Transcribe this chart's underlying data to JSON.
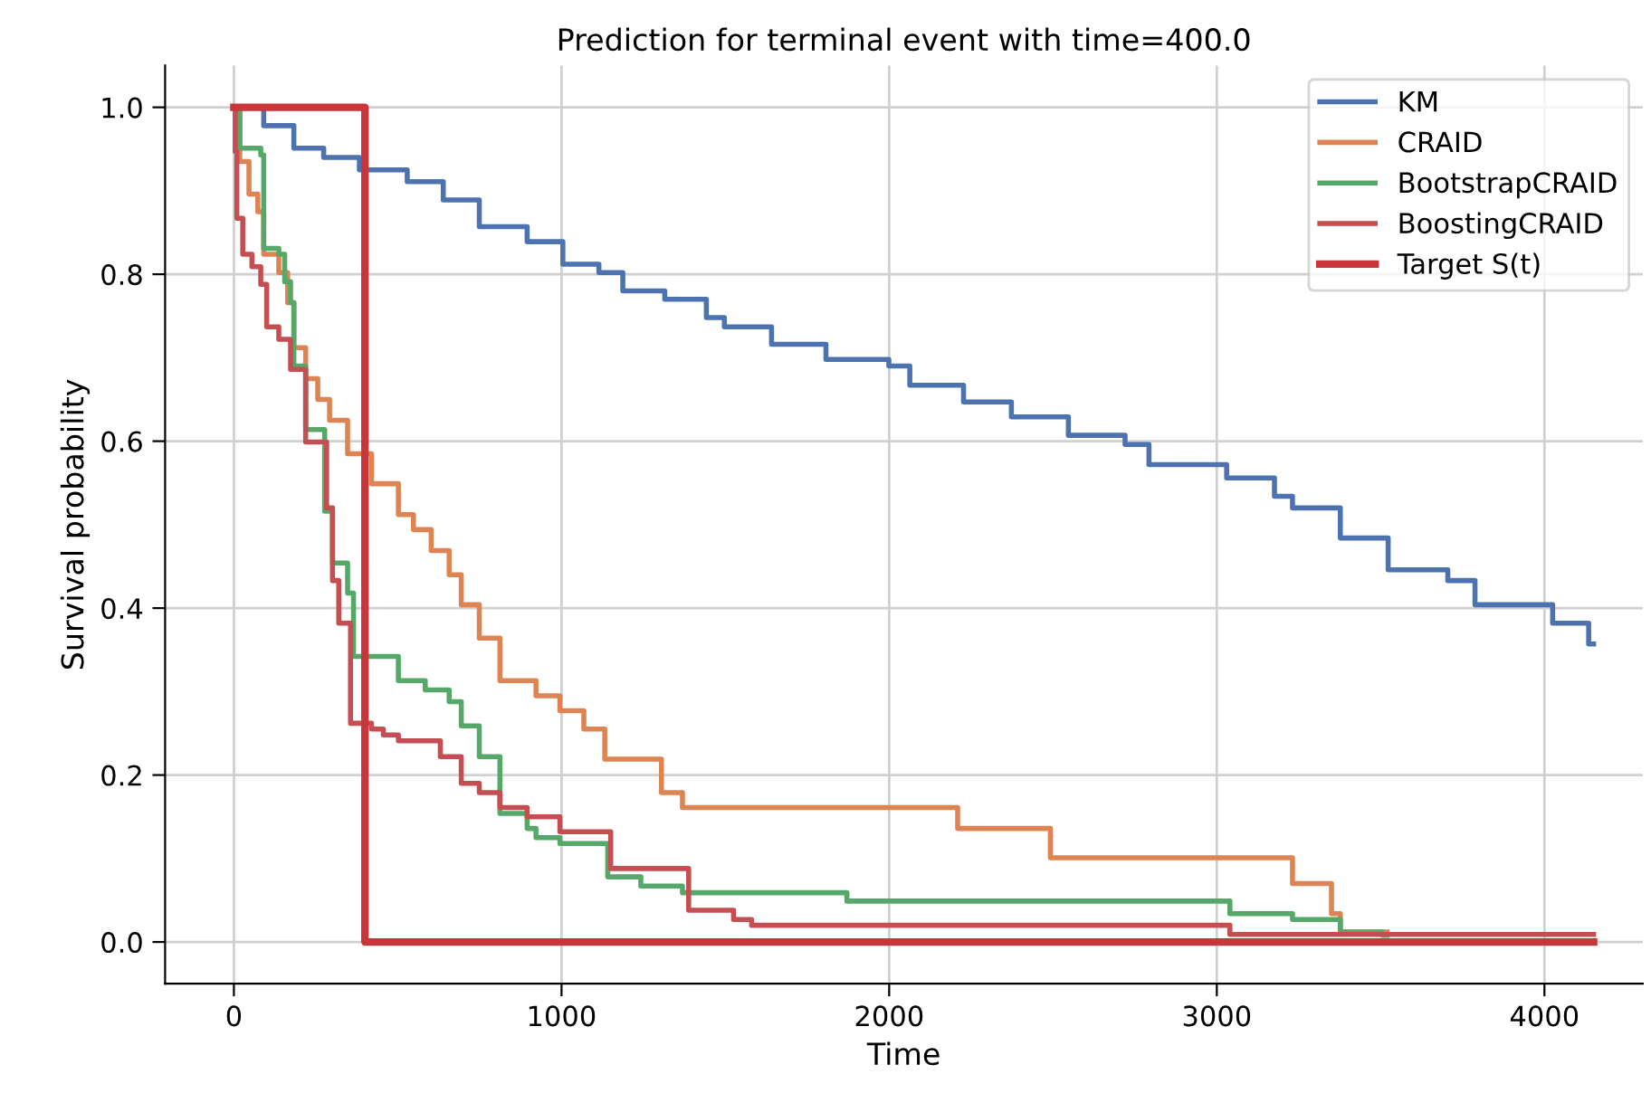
{
  "chart_data": {
    "type": "step",
    "title": "Prediction for terminal event with time=400.0",
    "xlabel": "Time",
    "ylabel": "Survival probability",
    "xlim": [
      -210,
      4300
    ],
    "ylim": [
      -0.05,
      1.05
    ],
    "xticks": [
      0,
      1000,
      2000,
      3000,
      4000
    ],
    "yticks": [
      {
        "value": 0,
        "label": "0.0"
      },
      {
        "value": 0.2,
        "label": "0.2"
      },
      {
        "value": 0.4,
        "label": "0.4"
      },
      {
        "value": 0.6,
        "label": "0.6"
      },
      {
        "value": 0.8,
        "label": "0.8"
      },
      {
        "value": 1,
        "label": "1.0"
      }
    ],
    "grid": true,
    "legend": "top right",
    "line_style": "solid",
    "marker": "none",
    "series": [
      {
        "name": "KM",
        "color": "#4c72b0",
        "x": [
          0,
          91,
          183,
          274,
          383,
          529,
          639,
          749,
          895,
          1004,
          1114,
          1187,
          1315,
          1442,
          1497,
          1641,
          1807,
          1999,
          2063,
          2227,
          2373,
          2547,
          2720,
          2793,
          3030,
          3176,
          3231,
          3377,
          3523,
          3705,
          3788,
          4025,
          4135,
          4150
        ],
        "values": [
          1.0,
          0.978,
          0.951,
          0.94,
          0.925,
          0.911,
          0.889,
          0.857,
          0.839,
          0.812,
          0.802,
          0.78,
          0.77,
          0.748,
          0.737,
          0.716,
          0.698,
          0.69,
          0.667,
          0.647,
          0.629,
          0.607,
          0.596,
          0.572,
          0.556,
          0.534,
          0.52,
          0.484,
          0.446,
          0.433,
          0.404,
          0.382,
          0.357,
          0.357
        ]
      },
      {
        "name": "CRAID",
        "color": "#dd8452",
        "x": [
          0,
          18,
          46,
          73,
          91,
          137,
          164,
          183,
          219,
          256,
          292,
          347,
          420,
          502,
          548,
          602,
          657,
          694,
          749,
          812,
          922,
          995,
          1068,
          1132,
          1305,
          1369,
          2209,
          2492,
          3231,
          3350,
          3377,
          3520
        ],
        "values": [
          1.0,
          0.935,
          0.896,
          0.875,
          0.824,
          0.802,
          0.766,
          0.712,
          0.675,
          0.65,
          0.625,
          0.585,
          0.549,
          0.512,
          0.494,
          0.469,
          0.44,
          0.404,
          0.364,
          0.313,
          0.295,
          0.277,
          0.255,
          0.219,
          0.179,
          0.161,
          0.136,
          0.101,
          0.07,
          0.034,
          0.012,
          0.012
        ]
      },
      {
        "name": "BootstrapCRAID",
        "color": "#55a868",
        "x": [
          0,
          18,
          82,
          91,
          137,
          155,
          173,
          183,
          219,
          277,
          301,
          347,
          365,
          502,
          584,
          657,
          694,
          749,
          812,
          895,
          922,
          995,
          1141,
          1242,
          1369,
          1871,
          3040,
          3231,
          3377,
          3505,
          3520
        ],
        "values": [
          1.0,
          0.951,
          0.943,
          0.831,
          0.824,
          0.791,
          0.766,
          0.69,
          0.614,
          0.516,
          0.454,
          0.418,
          0.342,
          0.313,
          0.302,
          0.288,
          0.259,
          0.222,
          0.154,
          0.136,
          0.125,
          0.118,
          0.078,
          0.067,
          0.059,
          0.049,
          0.034,
          0.027,
          0.012,
          0.008,
          0.008
        ]
      },
      {
        "name": "BoostingCRAID",
        "color": "#c44e52",
        "x": [
          0,
          4,
          9,
          27,
          55,
          82,
          100,
          137,
          173,
          219,
          283,
          301,
          320,
          356,
          420,
          456,
          502,
          630,
          694,
          749,
          812,
          895,
          995,
          1150,
          1388,
          1525,
          1580,
          3040,
          4150
        ],
        "values": [
          1.0,
          0.947,
          0.867,
          0.824,
          0.809,
          0.788,
          0.737,
          0.722,
          0.686,
          0.599,
          0.52,
          0.433,
          0.382,
          0.262,
          0.255,
          0.248,
          0.241,
          0.222,
          0.19,
          0.179,
          0.161,
          0.15,
          0.132,
          0.088,
          0.038,
          0.027,
          0.02,
          0.009,
          0.009
        ]
      },
      {
        "name": "Target S(t)",
        "color": "#c8353b",
        "x": [
          0,
          400,
          4150
        ],
        "values": [
          1.0,
          0.0,
          0.0
        ]
      }
    ]
  }
}
